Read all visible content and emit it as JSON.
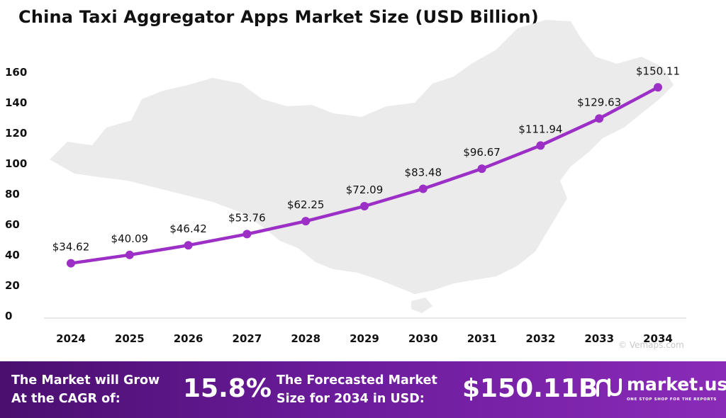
{
  "chart_data": {
    "type": "line",
    "title": "China Taxi Aggregator  Apps Market Size (USD Billion)",
    "categories": [
      "2024",
      "2025",
      "2026",
      "2027",
      "2028",
      "2029",
      "2030",
      "2031",
      "2032",
      "2033",
      "2034"
    ],
    "series": [
      {
        "values": [
          34.62,
          40.09,
          46.42,
          53.76,
          62.25,
          72.09,
          83.48,
          96.67,
          111.94,
          129.63,
          150.11
        ]
      }
    ],
    "data_labels": [
      "$34.62",
      "$40.09",
      "$46.42",
      "$53.76",
      "$62.25",
      "$72.09",
      "$83.48",
      "$96.67",
      "$111.94",
      "$129.63",
      "$150.11"
    ],
    "y_ticks": [
      "0",
      "20",
      "40",
      "60",
      "80",
      "100",
      "120",
      "140",
      "160"
    ],
    "ylim": [
      0,
      160
    ],
    "xlabel": "",
    "ylabel": "",
    "grid": false,
    "line_color": "#9b2fc6",
    "background_map": "map of China (faint grey)"
  },
  "footer": {
    "cagr_text_line1": "The Market will Grow",
    "cagr_text_line2": "At the CAGR of:",
    "cagr_value": "15.8%",
    "forecast_text_line1": "The Forecasted Market",
    "forecast_text_line2": "Size for 2034 in USD:",
    "forecast_value": "$150.11B",
    "brand_name": "market.us",
    "brand_tagline": "ONE STOP SHOP FOR THE REPORTS",
    "background_color_start": "#4a0f6f",
    "background_color_end": "#8a2bb8"
  },
  "watermark": "© Vemaps.com"
}
